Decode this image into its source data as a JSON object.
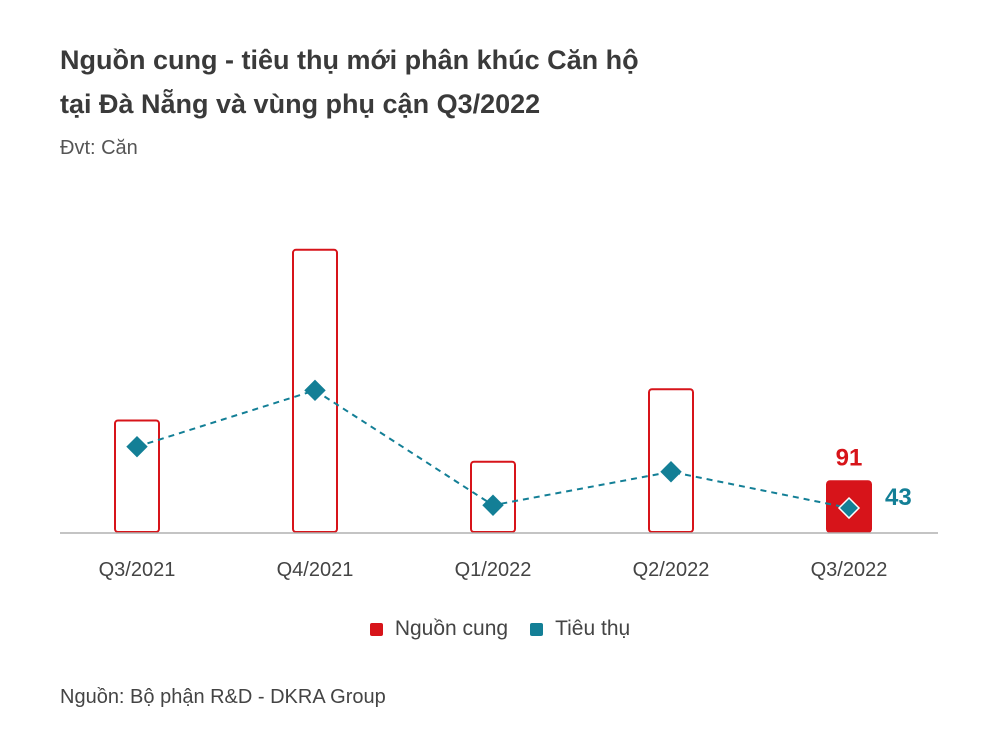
{
  "title_lines": [
    "Nguồn cung - tiêu thụ mới phân khúc Căn hộ",
    "tại Đà Nẵng và vùng phụ cận Q3/2022"
  ],
  "unit": "Đvt: Căn",
  "source": "Nguồn: Bộ phận R&D - DKRA Group",
  "colors": {
    "supply": "#d7141a",
    "sales": "#137f96",
    "axis": "#b0b0b0",
    "text": "#444444"
  },
  "chart_data": {
    "type": "bar",
    "categories": [
      "Q3/2021",
      "Q4/2021",
      "Q1/2022",
      "Q2/2022",
      "Q3/2022"
    ],
    "series": [
      {
        "name": "Nguồn cung",
        "kind": "bar",
        "values": [
          200,
          506,
          126,
          256,
          91
        ]
      },
      {
        "name": "Tiêu thụ",
        "kind": "line",
        "values": [
          153,
          254,
          48,
          108,
          43
        ]
      }
    ],
    "data_labels": {
      "supply": "91",
      "sales": "43"
    },
    "highlight_index": 4,
    "ylim": [
      0,
      520
    ],
    "grid": false,
    "legend": [
      "Nguồn cung",
      "Tiêu thụ"
    ],
    "legend_position": "bottom"
  }
}
